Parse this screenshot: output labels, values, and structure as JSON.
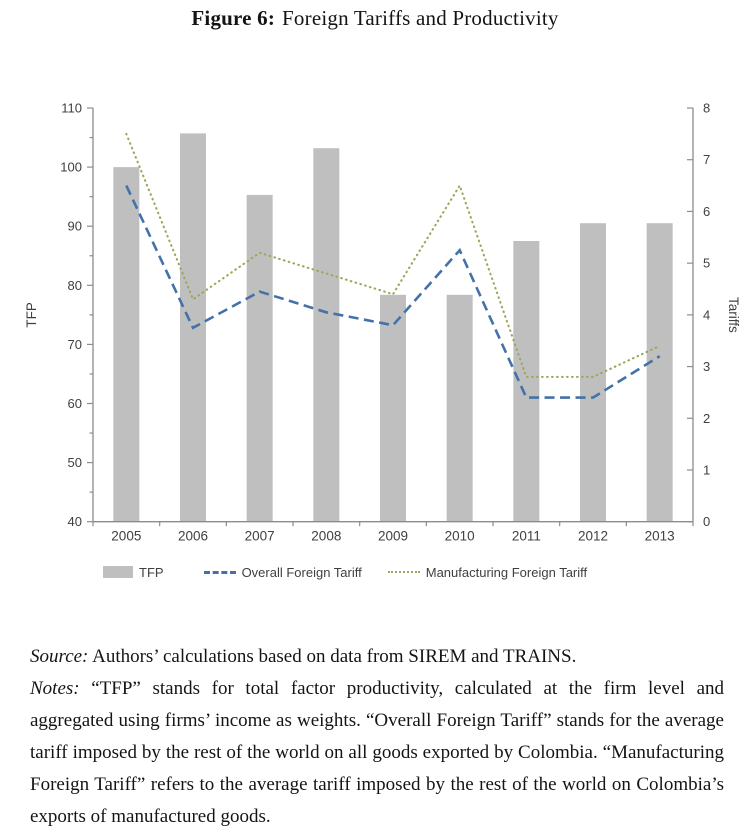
{
  "figure": {
    "title_label": "Figure 6:",
    "title_text": "Foreign Tariffs and Productivity"
  },
  "chart_data": {
    "type": "bar",
    "subtype": "bar+line combo, dual axis",
    "categories": [
      "2005",
      "2006",
      "2007",
      "2008",
      "2009",
      "2010",
      "2011",
      "2012",
      "2013"
    ],
    "series": [
      {
        "name": "TFP",
        "type": "bar",
        "axis": "left",
        "color": "#bfbfbf",
        "values": [
          100,
          105.7,
          95.3,
          103.2,
          78.4,
          78.4,
          87.5,
          90.5,
          90.5
        ]
      },
      {
        "name": "Overall Foreign Tariff",
        "type": "line",
        "style": "dashed",
        "axis": "right",
        "color": "#4472a8",
        "values": [
          6.5,
          3.75,
          4.45,
          4.05,
          3.8,
          5.25,
          2.4,
          2.4,
          3.2
        ]
      },
      {
        "name": "Manufacturing Foreign Tariff",
        "type": "line",
        "style": "dotted",
        "axis": "right",
        "color": "#9fa65b",
        "values": [
          7.5,
          4.3,
          5.2,
          4.8,
          4.4,
          6.5,
          2.8,
          2.8,
          3.4
        ]
      }
    ],
    "left_axis": {
      "label": "TFP",
      "min": 40,
      "max": 110,
      "step": 10
    },
    "right_axis": {
      "label": "Tariffs",
      "min": 0,
      "max": 8,
      "step": 1
    },
    "grid": false,
    "legend_position": "bottom",
    "axis_color": "#8c8c8c",
    "tick_label_color": "#404040"
  },
  "notes": {
    "source_label": "Source:",
    "source_text": "Authors’ calculations based on data from SIREM and TRAINS.",
    "notes_label": "Notes:",
    "notes_text": "“TFP” stands for total factor productivity, calculated at the firm level and aggregated using firms’ income as weights. “Overall Foreign Tariff” stands for the average tariff imposed by the rest of the world on all goods exported by Colombia. “Manufacturing Foreign Tariff” refers to the average tariff imposed by the rest of the world on Colombia’s exports of manufactured goods."
  }
}
